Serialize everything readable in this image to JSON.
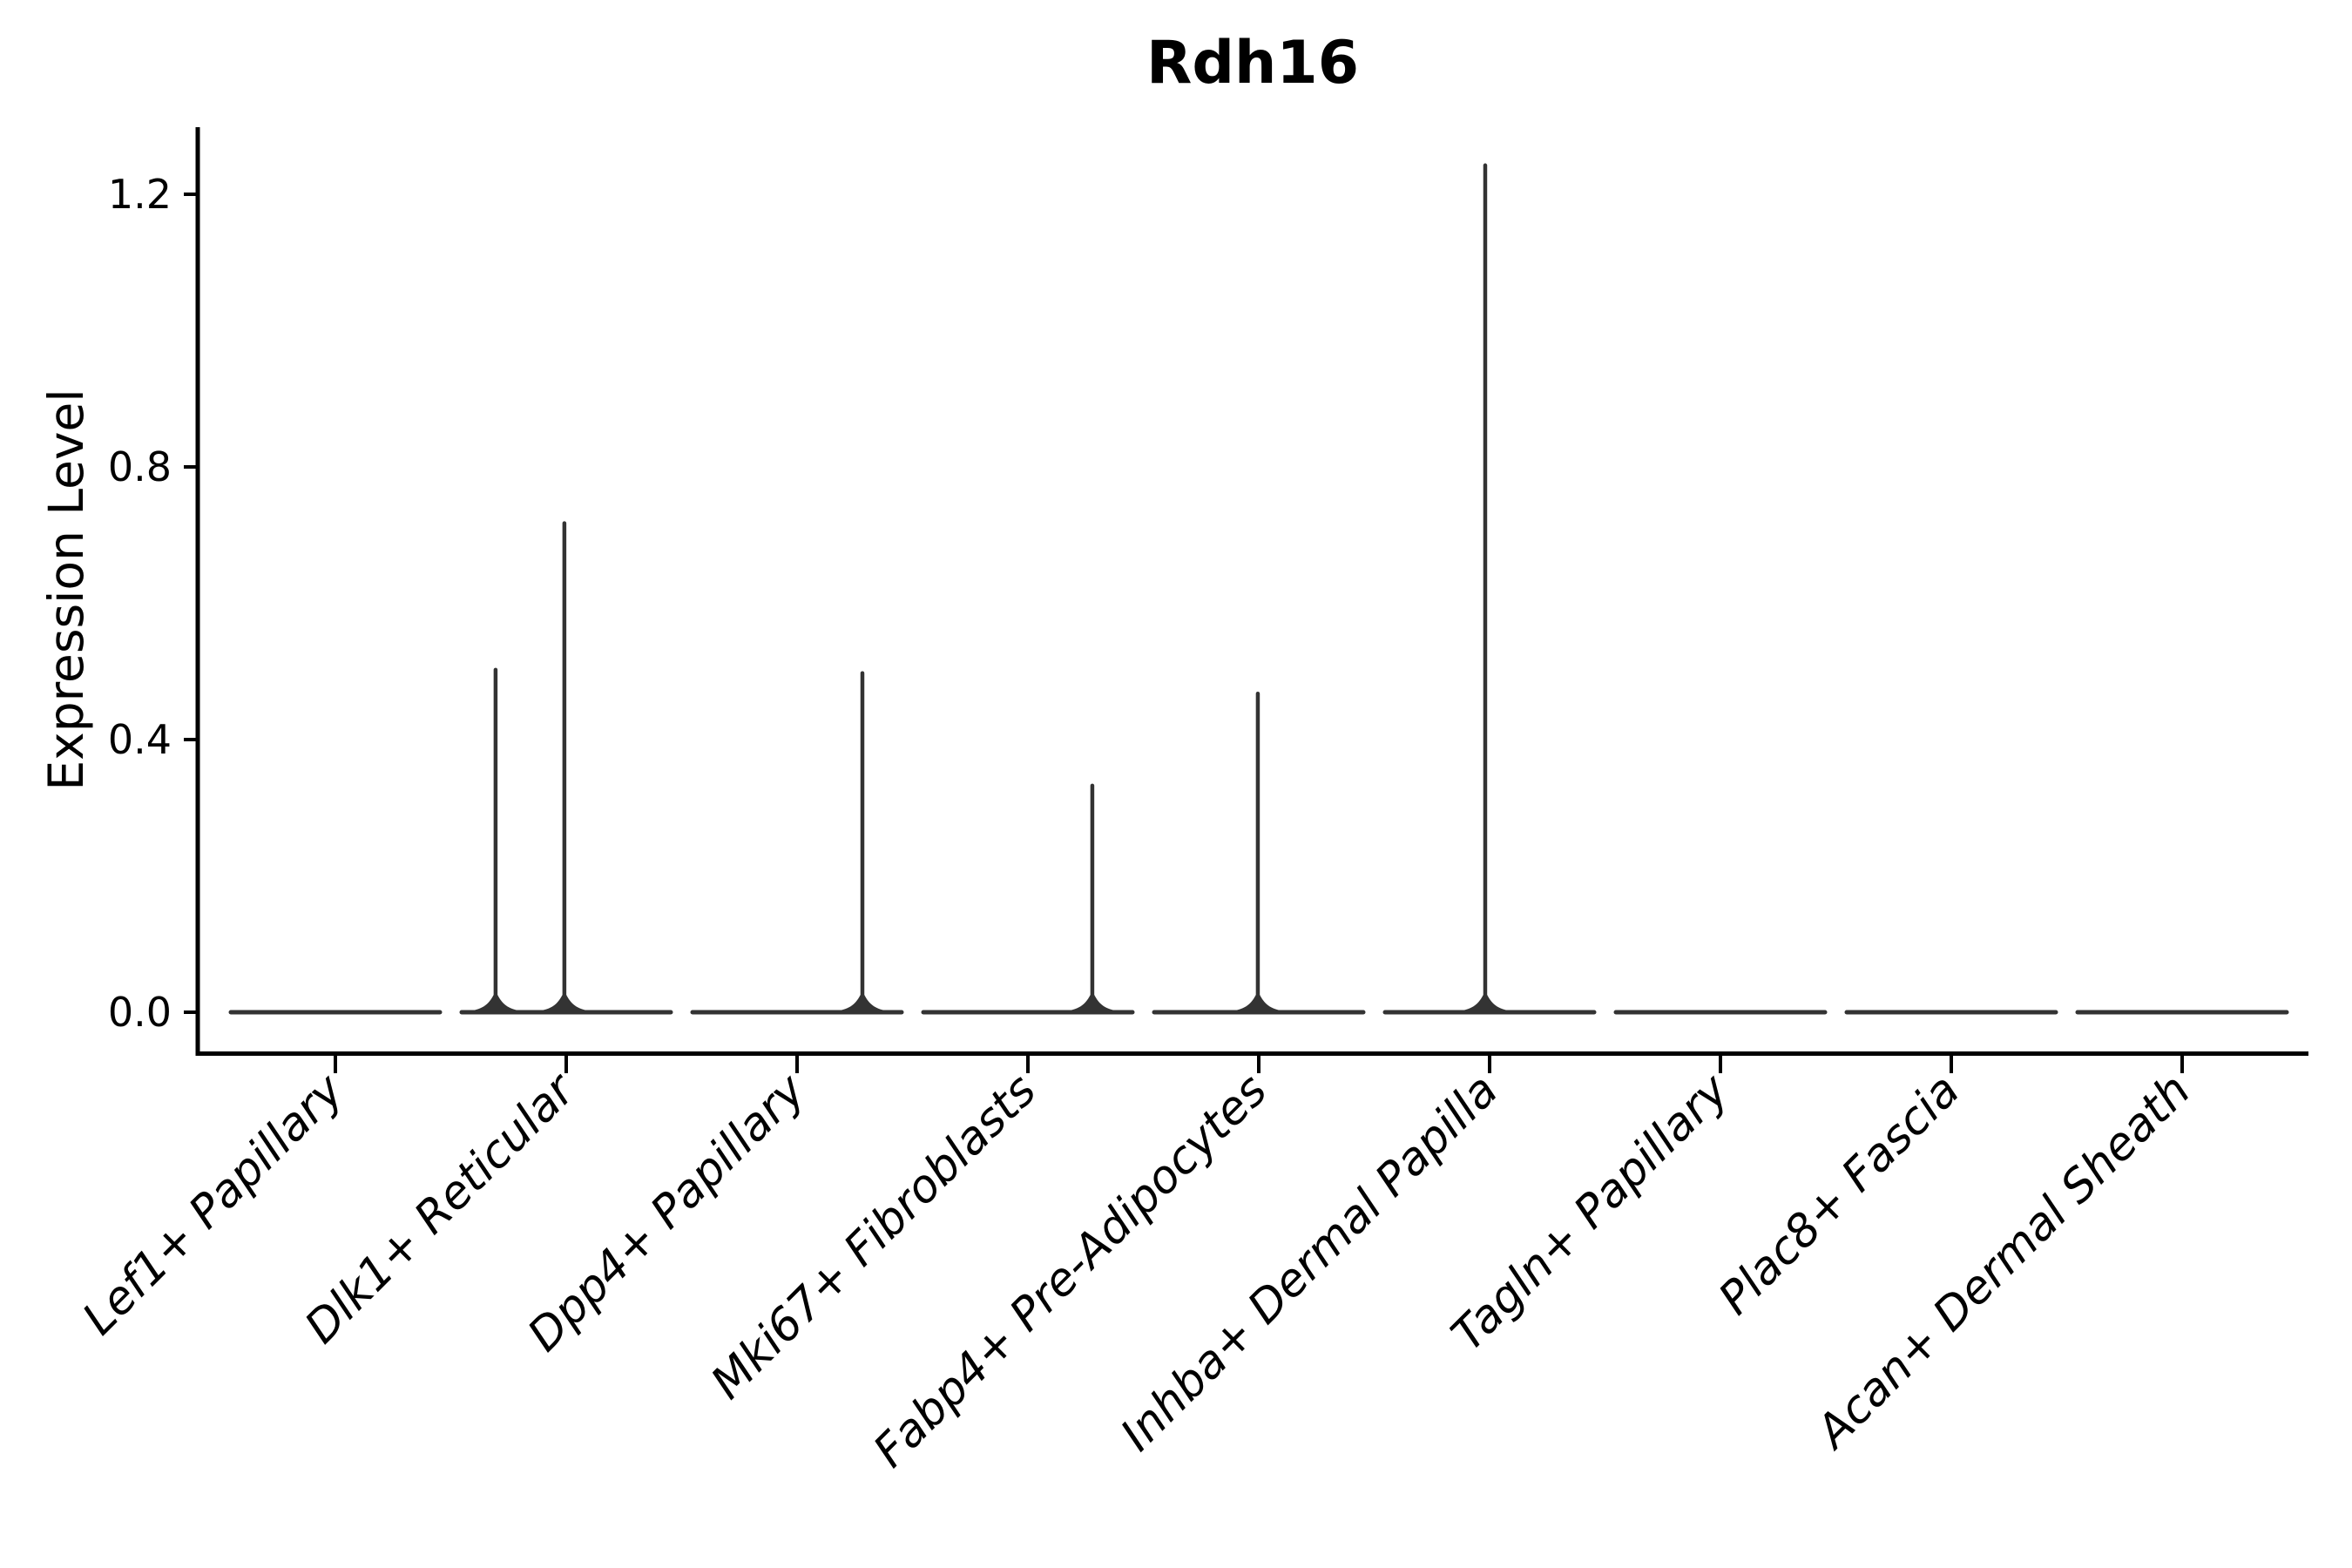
{
  "chart_data": {
    "type": "violin",
    "title": "Rdh16",
    "ylabel": "Expression Level",
    "xlabel": "",
    "grid": false,
    "legend": false,
    "ylim": [
      -0.06,
      1.3
    ],
    "yticks": [
      0.0,
      0.4,
      0.8,
      1.2
    ],
    "ytick_labels": [
      "0.0",
      "0.4",
      "0.8",
      "1.2"
    ],
    "categories": [
      "Lef1+ Papillary",
      "Dlk1+ Reticular",
      "Dpp4+ Papillary",
      "Mki67+ Fibroblasts",
      "Fabp4+ Pre-Adipocytes",
      "Inhba+ Dermal Papilla",
      "Tagln+ Papillary",
      "Plac8+ Fascia",
      "Acan+ Dermal Sheath"
    ],
    "violins": [
      {
        "category": "Lef1+ Papillary",
        "baseline_value": 0.0,
        "spikes": []
      },
      {
        "category": "Dlk1+ Reticular",
        "baseline_value": 0.0,
        "spikes": [
          {
            "offset": -0.306,
            "value": 0.505
          },
          {
            "offset": -0.008,
            "value": 0.72
          }
        ]
      },
      {
        "category": "Dpp4+ Papillary",
        "baseline_value": 0.0,
        "spikes": [
          {
            "offset": 0.283,
            "value": 0.5
          }
        ]
      },
      {
        "category": "Mki67+ Fibroblasts",
        "baseline_value": 0.0,
        "spikes": [
          {
            "offset": 0.279,
            "value": 0.335
          }
        ]
      },
      {
        "category": "Fabp4+ Pre-Adipocytes",
        "baseline_value": 0.0,
        "spikes": [
          {
            "offset": -0.004,
            "value": 0.47
          }
        ]
      },
      {
        "category": "Inhba+ Dermal Papilla",
        "baseline_value": 0.0,
        "spikes": [
          {
            "offset": -0.019,
            "value": 1.245
          }
        ]
      },
      {
        "category": "Tagln+ Papillary",
        "baseline_value": 0.0,
        "spikes": []
      },
      {
        "category": "Plac8+ Fascia",
        "baseline_value": 0.0,
        "spikes": []
      },
      {
        "category": "Acan+ Dermal Sheath",
        "baseline_value": 0.0,
        "spikes": []
      }
    ],
    "colors": {
      "violin_stroke": "#333333",
      "axis": "#000000",
      "text": "#000000",
      "background": "#ffffff"
    }
  }
}
